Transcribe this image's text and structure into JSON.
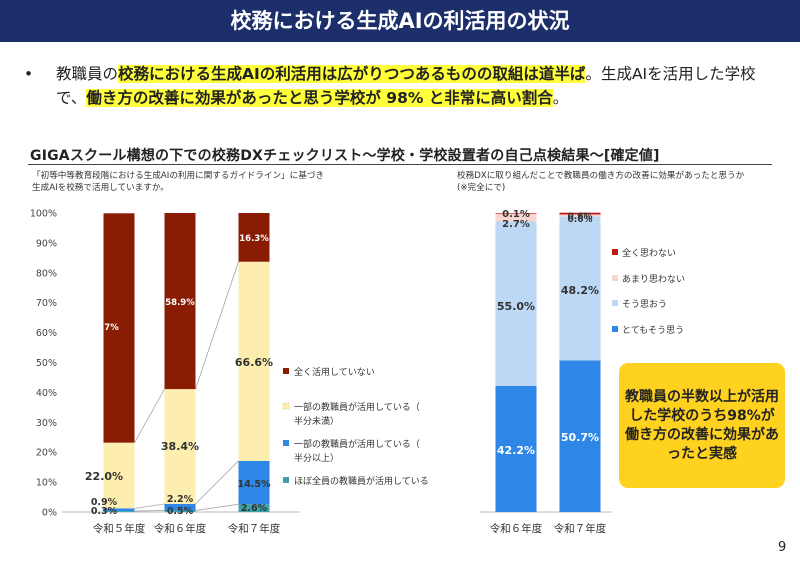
{
  "slide": {
    "title": "校務における生成AIの利活用の状況",
    "bullet_symbol": "•",
    "bullet_parts": [
      {
        "text": "教職員の",
        "hl": false
      },
      {
        "text": "校務における生成AIの利活用は広がりつつあるものの取組は道半ば",
        "hl": true
      },
      {
        "text": "。生成AIを活用した学校で、",
        "hl": false
      },
      {
        "text": "働き方の改善に効果があったと思う学校が 98% と非常に高い割合",
        "hl": true
      },
      {
        "text": "。",
        "hl": false
      }
    ],
    "section_title": "GIGAスクール構想の下での校務DXチェックリスト～学校・学校設置者の自己点検結果～[確定値]",
    "left_subtitle_1": "「初等中等教育段階における生成AIの利用に関するガイドライン」に基づき",
    "left_subtitle_2": "生成AIを校務で活用していますか。",
    "right_subtitle_1": "校務DXに取り組んだことで教職員の働き方の改善に効果があったと思うか",
    "right_subtitle_2": "(※完全にで)",
    "callout": "教職員の半数以上が活用した学校のうち98%が働き方の改善に効果があったと実感",
    "page_number": "9"
  },
  "chart_data": [
    {
      "type": "bar",
      "stacked": true,
      "categories": [
        "令和５年度",
        "令和６年度",
        "令和７年度"
      ],
      "ylim": [
        0,
        100
      ],
      "yticks": [
        "0%",
        "10%",
        "20%",
        "30%",
        "40%",
        "50%",
        "60%",
        "70%",
        "80%",
        "90%",
        "100%"
      ],
      "grid": false,
      "legend_position": "right",
      "series": [
        {
          "name": "ほぼ全員の教職員が活用している",
          "values": [
            0.3,
            0.5,
            2.6
          ],
          "labels": [
            "0.3%",
            "0.5%",
            "2.6%"
          ],
          "color": "#3ca3a8"
        },
        {
          "name": "一部の教職員が活用している（半分以上）",
          "values": [
            0.9,
            2.2,
            14.5
          ],
          "labels": [
            "0.9%",
            "2.2%",
            "14.5%"
          ],
          "color": "#2e86e6"
        },
        {
          "name": "一部の教職員が活用している（半分未満）",
          "values": [
            22.0,
            38.4,
            66.6
          ],
          "labels": [
            "22.0%",
            "38.4%",
            "66.6%"
          ],
          "color": "#fdeeb0"
        },
        {
          "name": "全く活用していない",
          "values": [
            76.7,
            58.9,
            16.3
          ],
          "labels": [
            "76.7%",
            "58.9%",
            "16.3%"
          ],
          "color": "#8b1c04"
        }
      ]
    },
    {
      "type": "bar",
      "stacked": true,
      "categories": [
        "令和６年度",
        "令和７年度"
      ],
      "ylim": [
        0,
        100
      ],
      "grid": false,
      "legend_position": "right",
      "series": [
        {
          "name": "とてもそう思う",
          "values": [
            42.2,
            50.7
          ],
          "labels": [
            "42.2%",
            "50.7%"
          ],
          "color": "#2e86e6"
        },
        {
          "name": "そう思おう",
          "values": [
            55.0,
            48.2
          ],
          "labels": [
            "55.0%",
            "48.2%"
          ],
          "color": "#bcd8f5"
        },
        {
          "name": "あまり思わない",
          "values": [
            2.7,
            0.6
          ],
          "labels": [
            "2.7%",
            "0.6%"
          ],
          "color": "#f9d5d0"
        },
        {
          "name": "全く思わない",
          "values": [
            0.1,
            0.6
          ],
          "labels": [
            "0.1%",
            "0.6%"
          ],
          "color": "#c0191a"
        }
      ]
    }
  ]
}
